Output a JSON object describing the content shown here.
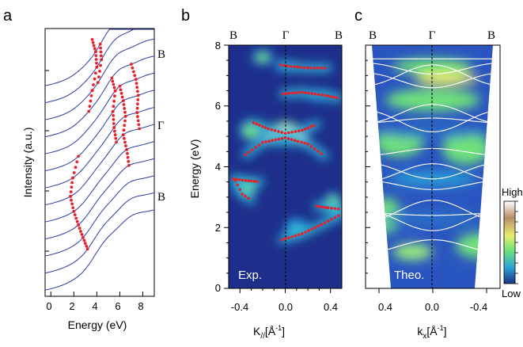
{
  "panels": {
    "a": {
      "letter": "a",
      "xlabel": "Energy (eV)",
      "ylabel": "Intensity (a.u.)",
      "xticks": [
        "0",
        "2",
        "4",
        "6",
        "8"
      ],
      "kpoints": [
        "B",
        "Γ",
        "B"
      ]
    },
    "b": {
      "letter": "b",
      "ylabel": "Energy (eV)",
      "xlabel": "K//[Å⁻¹]",
      "xlabel_main": "K",
      "xlabel_sub": "//",
      "xlabel_unit": "[Å",
      "xlabel_sup": "-1",
      "xlabel_close": "]",
      "xticks": [
        "-0.4",
        "0.0",
        "0.4"
      ],
      "yticks": [
        "0",
        "2",
        "4",
        "6",
        "8"
      ],
      "kpoints": [
        "B",
        "Γ",
        "B"
      ],
      "inset_label": "Exp."
    },
    "c": {
      "letter": "c",
      "xlabel": "kx[Å⁻¹]",
      "xlabel_main": "k",
      "xlabel_sub": "x",
      "xlabel_unit": "[Å",
      "xlabel_sup": "-1",
      "xlabel_close": "]",
      "xticks": [
        "0.4",
        "0.0",
        "-0.4"
      ],
      "kpoints": [
        "B",
        "Γ",
        "B"
      ],
      "inset_label": "Theo."
    },
    "colorbar": {
      "high": "High",
      "low": "Low"
    }
  },
  "chart_data": [
    {
      "type": "line",
      "panel": "a",
      "description_series": "stacked intensity spectra",
      "x_range": [
        -0.5,
        9
      ],
      "n_curves": 13,
      "curve_color": "#2a3aa8",
      "peak_marker_color": "#e8202a",
      "peak_tracks_eV": [
        [
          [
            3.6,
            13
          ],
          [
            3.9,
            12
          ],
          [
            4.0,
            11
          ],
          [
            3.6,
            10
          ],
          [
            3.3,
            9
          ]
        ],
        [
          [
            4.3,
            12
          ],
          [
            4.4,
            11
          ],
          [
            4.1,
            10
          ]
        ],
        [
          [
            5.3,
            9
          ],
          [
            5.6,
            8
          ],
          [
            5.4,
            7
          ],
          [
            5.5,
            6
          ],
          [
            5.7,
            5
          ]
        ],
        [
          [
            6.0,
            8
          ],
          [
            6.3,
            7
          ],
          [
            6.5,
            6
          ],
          [
            6.3,
            5
          ],
          [
            6.6,
            4
          ],
          [
            6.8,
            3
          ]
        ],
        [
          [
            7.0,
            9
          ],
          [
            7.4,
            8
          ],
          [
            7.6,
            7
          ],
          [
            7.5,
            6
          ],
          [
            7.7,
            5
          ]
        ],
        [
          [
            2.4,
            7
          ],
          [
            1.9,
            6
          ],
          [
            1.7,
            5
          ],
          [
            2.0,
            4
          ],
          [
            2.4,
            3
          ],
          [
            2.8,
            2
          ],
          [
            3.2,
            1
          ]
        ]
      ]
    },
    {
      "type": "heatmap",
      "panel": "b",
      "x_range": [
        -0.5,
        0.5
      ],
      "y_range": [
        0,
        8
      ],
      "colormap": [
        "#1d2f8a",
        "#1f63c6",
        "#31b6d8",
        "#6fe27a",
        "#f2f25a",
        "#ffffff"
      ],
      "band_marker_color": "#e8202a",
      "bands": [
        {
          "k": [
            -0.04,
            0.05,
            0.2,
            0.38
          ],
          "E": [
            7.35,
            7.3,
            7.25,
            7.25
          ]
        },
        {
          "k": [
            -0.02,
            0.15,
            0.35,
            0.48
          ],
          "E": [
            6.4,
            6.45,
            6.35,
            6.25
          ]
        },
        {
          "k": [
            -0.28,
            -0.15,
            0.0,
            0.15,
            0.28
          ],
          "E": [
            5.45,
            5.25,
            5.1,
            5.2,
            5.4
          ]
        },
        {
          "k": [
            -0.35,
            -0.2,
            0.0,
            0.2,
            0.35
          ],
          "E": [
            4.4,
            4.8,
            4.95,
            4.75,
            4.35
          ]
        },
        {
          "k": [
            -0.46,
            -0.35,
            -0.22
          ],
          "E": [
            3.6,
            3.55,
            3.5
          ]
        },
        {
          "k": [
            -0.44,
            -0.38,
            -0.3
          ],
          "E": [
            3.55,
            3.1,
            2.9
          ]
        },
        {
          "k": [
            -0.03,
            0.15,
            0.32,
            0.5
          ],
          "E": [
            1.6,
            1.8,
            2.1,
            2.45
          ]
        },
        {
          "k": [
            0.28,
            0.38,
            0.5
          ],
          "E": [
            2.7,
            2.65,
            2.6
          ]
        }
      ],
      "hot_regions": [
        {
          "k": 0.0,
          "E": 5.1,
          "w": 0.22,
          "h": 0.5,
          "v": 1.0
        },
        {
          "k": 0.0,
          "E": 4.95,
          "w": 0.35,
          "h": 0.25,
          "v": 0.8
        },
        {
          "k": 0.0,
          "E": 7.3,
          "w": 0.12,
          "h": 0.15,
          "v": 0.6
        },
        {
          "k": -0.3,
          "E": 5.2,
          "w": 0.15,
          "h": 0.5,
          "v": 0.55
        },
        {
          "k": -0.2,
          "E": 7.6,
          "w": 0.12,
          "h": 0.3,
          "v": 0.5
        },
        {
          "k": 0.42,
          "E": 2.8,
          "w": 0.1,
          "h": 0.5,
          "v": 0.55
        },
        {
          "k": -0.35,
          "E": 3.3,
          "w": 0.15,
          "h": 0.4,
          "v": 0.5
        },
        {
          "k": 0.1,
          "E": 2.0,
          "w": 0.15,
          "h": 0.4,
          "v": 0.45
        },
        {
          "k": 0.3,
          "E": 6.35,
          "w": 0.2,
          "h": 0.15,
          "v": 0.45
        }
      ]
    },
    {
      "type": "heatmap",
      "panel": "c",
      "x_range": [
        0.5,
        -0.5
      ],
      "y_range": [
        0,
        8
      ],
      "band_line_color": "#ffffff"
    }
  ]
}
